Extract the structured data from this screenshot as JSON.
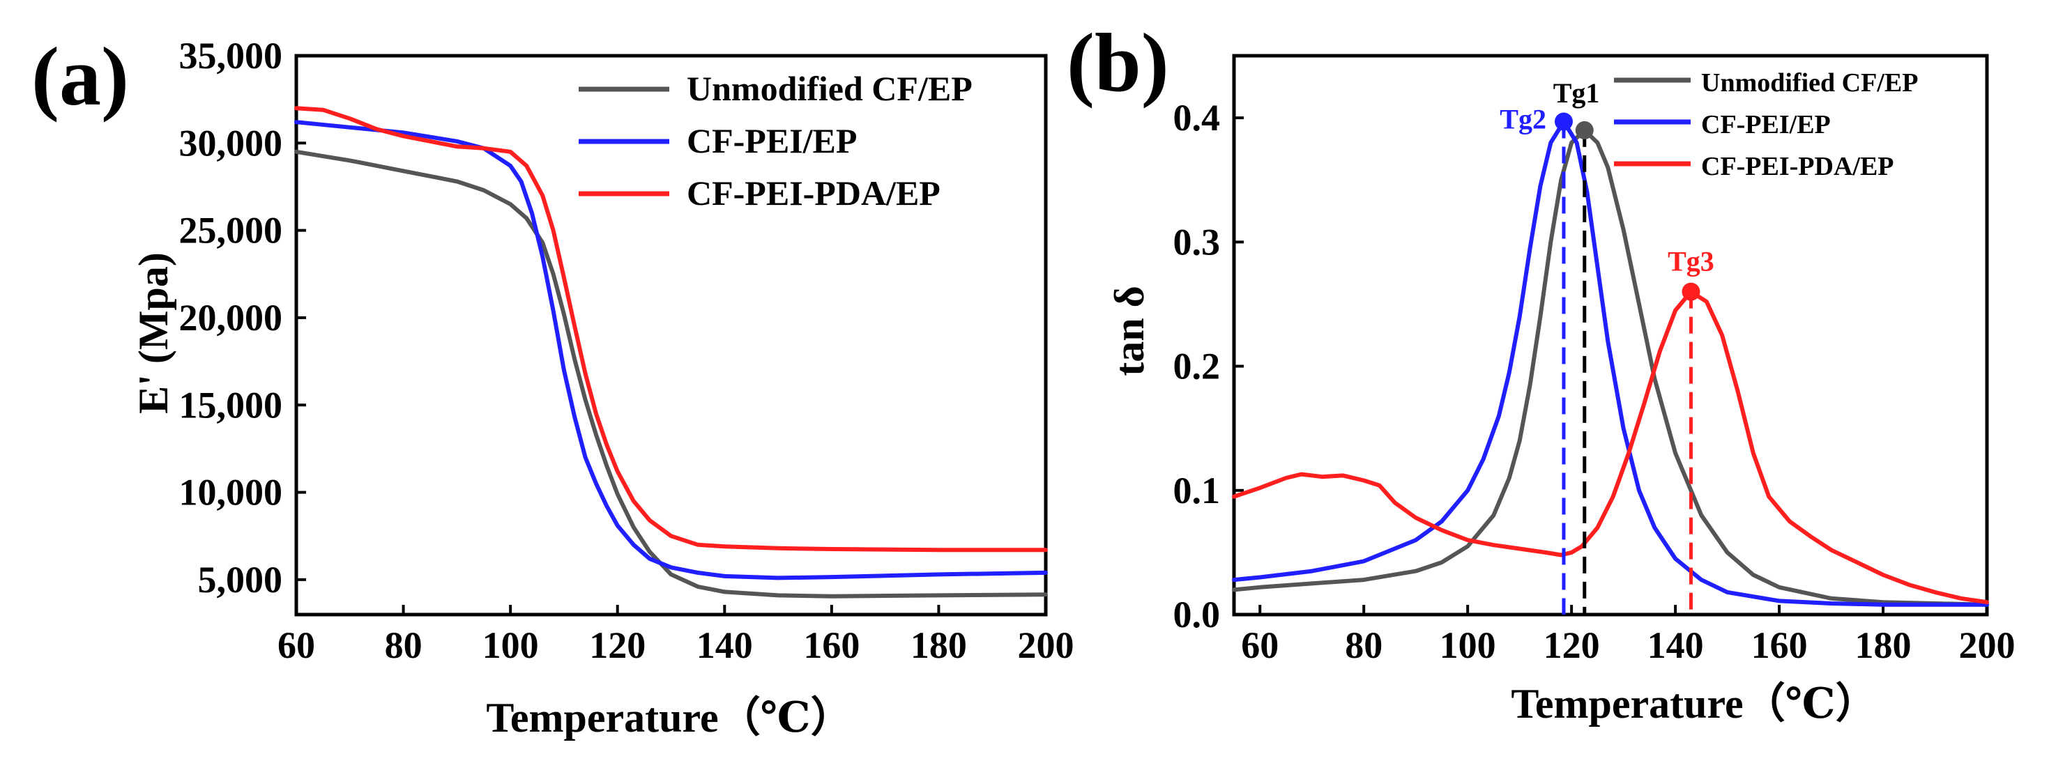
{
  "chart_data": [
    {
      "panel": "(a)",
      "type": "line",
      "title": "",
      "xlabel": "Temperature（℃）",
      "ylabel": "E' (Mpa)",
      "xlim": [
        60,
        200
      ],
      "ylim": [
        3000,
        35000
      ],
      "xticks": [
        60,
        80,
        100,
        120,
        140,
        160,
        180,
        200
      ],
      "xtick_labels": [
        "60",
        "80",
        "100",
        "120",
        "140",
        "160",
        "180",
        "200"
      ],
      "yticks": [
        5000,
        10000,
        15000,
        20000,
        25000,
        30000,
        35000
      ],
      "ytick_labels": [
        "5,000",
        "10,000",
        "15,000",
        "20,000",
        "25,000",
        "30,000",
        "35,000"
      ],
      "legend_position": "top-right",
      "series": [
        {
          "name": "Unmodified CF/EP",
          "color": "#555555",
          "x": [
            60,
            70,
            80,
            90,
            95,
            100,
            103,
            106,
            108,
            110,
            112,
            114,
            116,
            118,
            120,
            123,
            126,
            130,
            135,
            140,
            150,
            160,
            180,
            200
          ],
          "y": [
            29500,
            29000,
            28400,
            27800,
            27300,
            26500,
            25700,
            24300,
            22500,
            20200,
            17600,
            15300,
            13300,
            11500,
            9900,
            8000,
            6600,
            5300,
            4600,
            4300,
            4100,
            4050,
            4100,
            4150
          ]
        },
        {
          "name": "CF-PEI/EP",
          "color": "#1f1fff",
          "x": [
            60,
            70,
            80,
            90,
            95,
            100,
            102,
            104,
            106,
            108,
            110,
            112,
            114,
            116,
            118,
            120,
            123,
            126,
            130,
            135,
            140,
            150,
            160,
            180,
            200
          ],
          "y": [
            31200,
            30900,
            30600,
            30100,
            29700,
            28700,
            27800,
            26000,
            23500,
            20400,
            17000,
            14300,
            12000,
            10500,
            9200,
            8100,
            7000,
            6200,
            5700,
            5400,
            5200,
            5100,
            5150,
            5300,
            5400
          ]
        },
        {
          "name": "CF-PEI-PDA/EP",
          "color": "#ff1f1f",
          "x": [
            60,
            65,
            70,
            75,
            80,
            85,
            90,
            95,
            100,
            103,
            106,
            108,
            110,
            112,
            114,
            116,
            118,
            120,
            123,
            126,
            130,
            135,
            140,
            150,
            160,
            180,
            200
          ],
          "y": [
            32000,
            31900,
            31400,
            30800,
            30400,
            30100,
            29800,
            29700,
            29500,
            28700,
            27000,
            25000,
            22300,
            19500,
            16800,
            14500,
            12700,
            11200,
            9500,
            8400,
            7500,
            7000,
            6900,
            6800,
            6750,
            6700,
            6700
          ]
        }
      ]
    },
    {
      "panel": "(b)",
      "type": "line",
      "title": "",
      "xlabel": "Temperature（℃）",
      "ylabel": "tan δ",
      "xlim": [
        55,
        200
      ],
      "ylim": [
        0.0,
        0.45
      ],
      "xticks": [
        60,
        80,
        100,
        120,
        140,
        160,
        180,
        200
      ],
      "xtick_labels": [
        "60",
        "80",
        "100",
        "120",
        "140",
        "160",
        "180",
        "200"
      ],
      "yticks": [
        0.0,
        0.1,
        0.2,
        0.3,
        0.4
      ],
      "ytick_labels": [
        "0.0",
        "0.1",
        "0.2",
        "0.3",
        "0.4"
      ],
      "legend_position": "top-right",
      "series": [
        {
          "name": "Unmodified CF/EP",
          "color": "#555555",
          "x": [
            55,
            60,
            70,
            80,
            90,
            95,
            100,
            105,
            108,
            110,
            112,
            114,
            116,
            118,
            120,
            122.5,
            125,
            127,
            130,
            133,
            136,
            140,
            145,
            150,
            155,
            160,
            170,
            180,
            190,
            200
          ],
          "y": [
            0.02,
            0.022,
            0.025,
            0.028,
            0.035,
            0.042,
            0.055,
            0.08,
            0.11,
            0.14,
            0.185,
            0.24,
            0.3,
            0.35,
            0.38,
            0.39,
            0.38,
            0.36,
            0.31,
            0.25,
            0.19,
            0.13,
            0.08,
            0.05,
            0.032,
            0.022,
            0.013,
            0.01,
            0.009,
            0.008
          ]
        },
        {
          "name": "CF-PEI/EP",
          "color": "#1f1fff",
          "x": [
            55,
            60,
            70,
            80,
            90,
            95,
            100,
            103,
            106,
            108,
            110,
            112,
            114,
            116,
            118.5,
            121,
            123,
            125,
            127,
            130,
            133,
            136,
            140,
            145,
            150,
            160,
            170,
            180,
            190,
            200
          ],
          "y": [
            0.028,
            0.03,
            0.035,
            0.043,
            0.06,
            0.075,
            0.1,
            0.125,
            0.16,
            0.195,
            0.24,
            0.295,
            0.345,
            0.38,
            0.397,
            0.38,
            0.34,
            0.28,
            0.22,
            0.15,
            0.1,
            0.07,
            0.045,
            0.028,
            0.018,
            0.011,
            0.009,
            0.008,
            0.008,
            0.008
          ]
        },
        {
          "name": "CF-PEI-PDA/EP",
          "color": "#ff1f1f",
          "x": [
            55,
            60,
            65,
            68,
            72,
            76,
            80,
            83,
            86,
            90,
            95,
            100,
            105,
            110,
            115,
            118,
            120,
            122,
            125,
            128,
            131,
            134,
            137,
            140,
            143,
            146,
            149,
            152,
            155,
            158,
            162,
            166,
            170,
            175,
            180,
            185,
            190,
            195,
            200
          ],
          "y": [
            0.095,
            0.102,
            0.11,
            0.113,
            0.111,
            0.112,
            0.108,
            0.104,
            0.09,
            0.078,
            0.068,
            0.06,
            0.056,
            0.053,
            0.05,
            0.048,
            0.05,
            0.055,
            0.07,
            0.095,
            0.13,
            0.17,
            0.212,
            0.245,
            0.26,
            0.252,
            0.225,
            0.18,
            0.13,
            0.095,
            0.075,
            0.063,
            0.052,
            0.042,
            0.032,
            0.024,
            0.018,
            0.013,
            0.01
          ]
        }
      ],
      "peaks": [
        {
          "label": "Tg1",
          "x": 122.5,
          "y": 0.39,
          "color": "#000000",
          "marker_color": "#555555"
        },
        {
          "label": "Tg2",
          "x": 118.5,
          "y": 0.397,
          "color": "#1f1fff",
          "marker_color": "#1f1fff"
        },
        {
          "label": "Tg3",
          "x": 143.0,
          "y": 0.26,
          "color": "#ff1f1f",
          "marker_color": "#ff1f1f"
        }
      ]
    }
  ]
}
